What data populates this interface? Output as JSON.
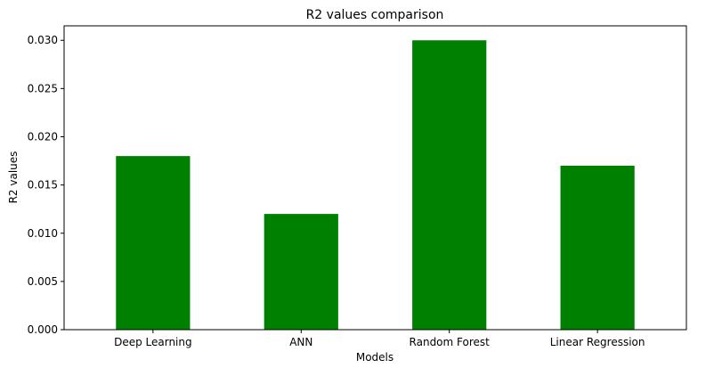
{
  "chart_data": {
    "type": "bar",
    "title": "R2 values comparison",
    "xlabel": "Models",
    "ylabel": "R2 values",
    "categories": [
      "Deep Learning",
      "ANN",
      "Random Forest",
      "Linear Regression"
    ],
    "values": [
      0.018,
      0.012,
      0.03,
      0.017
    ],
    "ylim": [
      0,
      0.0315
    ],
    "yticks": [
      "0.000",
      "0.005",
      "0.010",
      "0.015",
      "0.020",
      "0.025",
      "0.030"
    ],
    "grid": false,
    "legend": "none",
    "bar_color": "#008000"
  }
}
